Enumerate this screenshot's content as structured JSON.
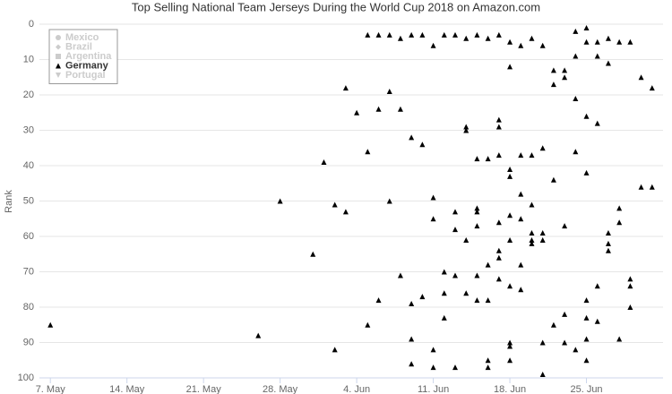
{
  "chart_data": {
    "type": "scatter",
    "title": "Top Selling National Team Jerseys During the World Cup 2018 on Amazon.com",
    "y_label": "Rank",
    "ylim": [
      0,
      100
    ],
    "yticks": [
      0,
      10,
      20,
      30,
      40,
      50,
      60,
      70,
      80,
      90,
      100
    ],
    "y_reversed": true,
    "grid": true,
    "xlim": [
      "05-06",
      "07-02"
    ],
    "xticks": [
      {
        "value": "05-07",
        "label": "7. May"
      },
      {
        "value": "05-14",
        "label": "14. May"
      },
      {
        "value": "05-21",
        "label": "21. May"
      },
      {
        "value": "05-28",
        "label": "28. May"
      },
      {
        "value": "06-04",
        "label": "4. Jun"
      },
      {
        "value": "06-11",
        "label": "11. Jun"
      },
      {
        "value": "06-18",
        "label": "18. Jun"
      },
      {
        "value": "06-25",
        "label": "25. Jun"
      }
    ],
    "legend": "top-left",
    "series": [
      {
        "name": "Mexico",
        "color": "#cccccc",
        "marker": "circle",
        "visible": false,
        "x": [],
        "values": []
      },
      {
        "name": "Brazil",
        "color": "#cccccc",
        "marker": "diamond",
        "visible": false,
        "x": [],
        "values": []
      },
      {
        "name": "Argentina",
        "color": "#cccccc",
        "marker": "square",
        "visible": false,
        "x": [],
        "values": []
      },
      {
        "name": "Germany",
        "color": "#000000",
        "marker": "triangle",
        "visible": true,
        "x": [
          "05-07",
          "05-26",
          "05-28",
          "05-31",
          "06-01",
          "06-02",
          "06-02",
          "06-03",
          "06-03",
          "06-04",
          "06-05",
          "06-05",
          "06-05",
          "06-06",
          "06-06",
          "06-06",
          "06-07",
          "06-07",
          "06-07",
          "06-08",
          "06-08",
          "06-08",
          "06-09",
          "06-09",
          "06-09",
          "06-09",
          "06-09",
          "06-10",
          "06-10",
          "06-10",
          "06-11",
          "06-11",
          "06-11",
          "06-11",
          "06-11",
          "06-12",
          "06-12",
          "06-12",
          "06-12",
          "06-13",
          "06-13",
          "06-13",
          "06-13",
          "06-13",
          "06-14",
          "06-14",
          "06-14",
          "06-14",
          "06-14",
          "06-15",
          "06-15",
          "06-15",
          "06-15",
          "06-15",
          "06-15",
          "06-15",
          "06-16",
          "06-16",
          "06-16",
          "06-16",
          "06-16",
          "06-16",
          "06-17",
          "06-17",
          "06-17",
          "06-17",
          "06-17",
          "06-17",
          "06-17",
          "06-17",
          "06-18",
          "06-18",
          "06-18",
          "06-18",
          "06-18",
          "06-18",
          "06-18",
          "06-18",
          "06-18",
          "06-18",
          "06-19",
          "06-19",
          "06-19",
          "06-19",
          "06-19",
          "06-19",
          "06-20",
          "06-20",
          "06-20",
          "06-20",
          "06-20",
          "06-20",
          "06-21",
          "06-21",
          "06-21",
          "06-21",
          "06-21",
          "06-21",
          "06-22",
          "06-22",
          "06-22",
          "06-22",
          "06-23",
          "06-23",
          "06-23",
          "06-23",
          "06-23",
          "06-24",
          "06-24",
          "06-24",
          "06-24",
          "06-24",
          "06-25",
          "06-25",
          "06-25",
          "06-25",
          "06-25",
          "06-25",
          "06-25",
          "06-25",
          "06-26",
          "06-26",
          "06-26",
          "06-26",
          "06-26",
          "06-27",
          "06-27",
          "06-27",
          "06-27",
          "06-27",
          "06-28",
          "06-28",
          "06-28",
          "06-28",
          "06-29",
          "06-29",
          "06-29",
          "06-29",
          "06-30",
          "06-30",
          "07-01",
          "07-01"
        ],
        "values": [
          85,
          88,
          50,
          65,
          39,
          51,
          92,
          18,
          53,
          25,
          3,
          36,
          85,
          3,
          24,
          78,
          3,
          19,
          50,
          4,
          24,
          71,
          3,
          32,
          79,
          89,
          96,
          3,
          34,
          77,
          6,
          49,
          55,
          92,
          97,
          3,
          70,
          76,
          83,
          3,
          53,
          58,
          71,
          97,
          4,
          29,
          30,
          61,
          76,
          3,
          38,
          52,
          53,
          57,
          71,
          78,
          4,
          38,
          68,
          78,
          95,
          97,
          3,
          27,
          29,
          37,
          56,
          64,
          66,
          72,
          5,
          12,
          41,
          43,
          54,
          61,
          74,
          90,
          91,
          95,
          6,
          37,
          48,
          55,
          68,
          75,
          4,
          37,
          51,
          59,
          61,
          62,
          6,
          35,
          59,
          61,
          90,
          99,
          13,
          17,
          44,
          85,
          13,
          15,
          57,
          82,
          90,
          2,
          9,
          21,
          36,
          92,
          1,
          5,
          26,
          42,
          78,
          83,
          89,
          95,
          5,
          9,
          28,
          74,
          84,
          4,
          11,
          59,
          62,
          64,
          5,
          52,
          56,
          89,
          5,
          72,
          74,
          80,
          15,
          46,
          18,
          46
        ]
      },
      {
        "name": "Portugal",
        "color": "#cccccc",
        "marker": "triangle-down",
        "visible": false,
        "x": [],
        "values": []
      }
    ]
  }
}
